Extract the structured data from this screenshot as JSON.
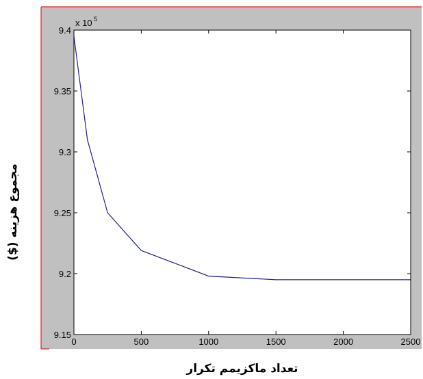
{
  "chart_data": {
    "type": "line",
    "xlabel": "تعداد ماکزیمم تکرار",
    "ylabel": "مجموع هزینه  ($)",
    "y_multiplier_base": "x 10",
    "y_multiplier_exponent": "5",
    "xlim": [
      0,
      2500
    ],
    "ylim": [
      9.15,
      9.4
    ],
    "xticks": [
      "0",
      "500",
      "1000",
      "1500",
      "2000",
      "2500"
    ],
    "yticks": [
      "9.15",
      "9.2",
      "9.25",
      "9.3",
      "9.35",
      "9.4"
    ],
    "grid": false,
    "series": [
      {
        "color": "#1f1f8f",
        "x": [
          0,
          100,
          250,
          500,
          1000,
          1500,
          2000,
          2500
        ],
        "y": [
          9.395,
          9.31,
          9.25,
          9.219,
          9.198,
          9.195,
          9.195,
          9.195
        ]
      }
    ]
  },
  "colors": {
    "figure_background": "#c0c0c0",
    "plot_background": "#ffffff",
    "figure_border": "#e02020",
    "line": "#1f1f8f"
  }
}
